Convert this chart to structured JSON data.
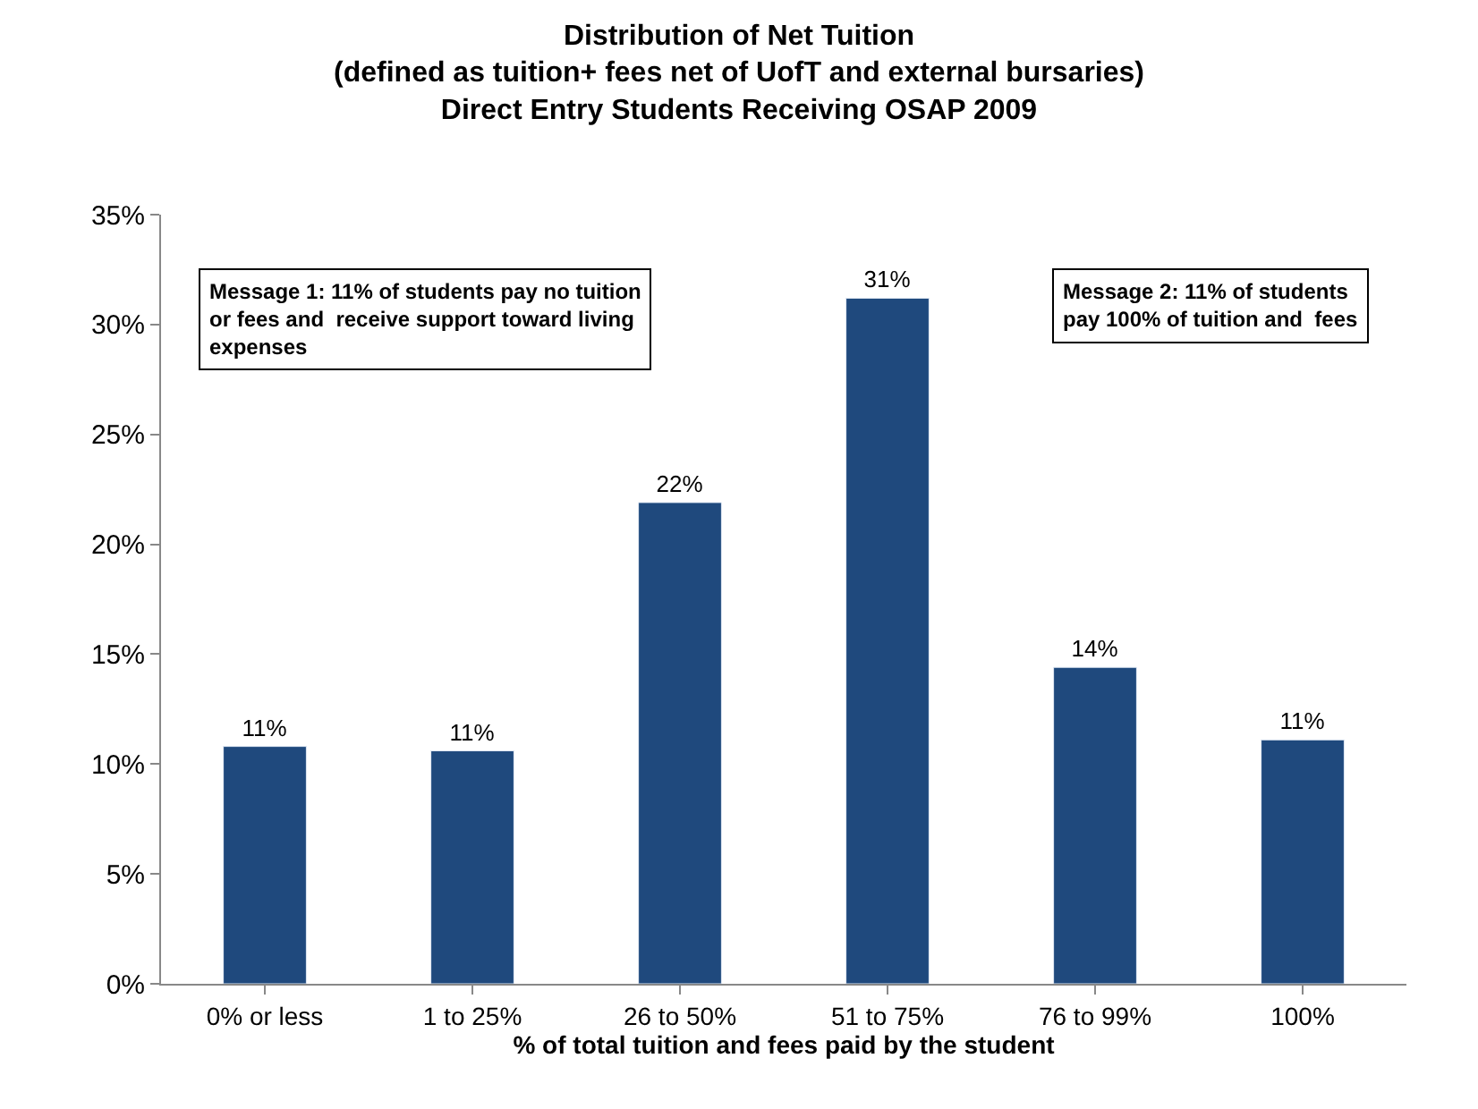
{
  "chart_data": {
    "type": "bar",
    "title": "Distribution of Net Tuition\n(defined as tuition+ fees net of UofT and external bursaries)\nDirect Entry Students Receiving OSAP 2009",
    "xlabel": "% of total tuition and fees paid by the student",
    "categories": [
      "0% or less",
      "1 to 25%",
      "26 to 50%",
      "51 to 75%",
      "76 to 99%",
      "100%"
    ],
    "values": [
      10.8,
      10.6,
      21.9,
      31.2,
      14.4,
      11.1
    ],
    "value_labels": [
      "11%",
      "11%",
      "22%",
      "31%",
      "14%",
      "11%"
    ],
    "color": "#1f497d",
    "ylim": [
      0,
      35
    ],
    "yticks": [
      {
        "value": 0,
        "label": "0%"
      },
      {
        "value": 5,
        "label": "5%"
      },
      {
        "value": 10,
        "label": "10%"
      },
      {
        "value": 15,
        "label": "15%"
      },
      {
        "value": 20,
        "label": "20%"
      },
      {
        "value": 25,
        "label": "25%"
      },
      {
        "value": 30,
        "label": "30%"
      },
      {
        "value": 35,
        "label": "35%"
      }
    ],
    "legend": false,
    "annotations": [
      "Message 1: 11% of students pay no tuition\nor fees and  receive support toward living\nexpenses",
      "Message 2: 11% of students\npay 100% of tuition and  fees"
    ]
  }
}
